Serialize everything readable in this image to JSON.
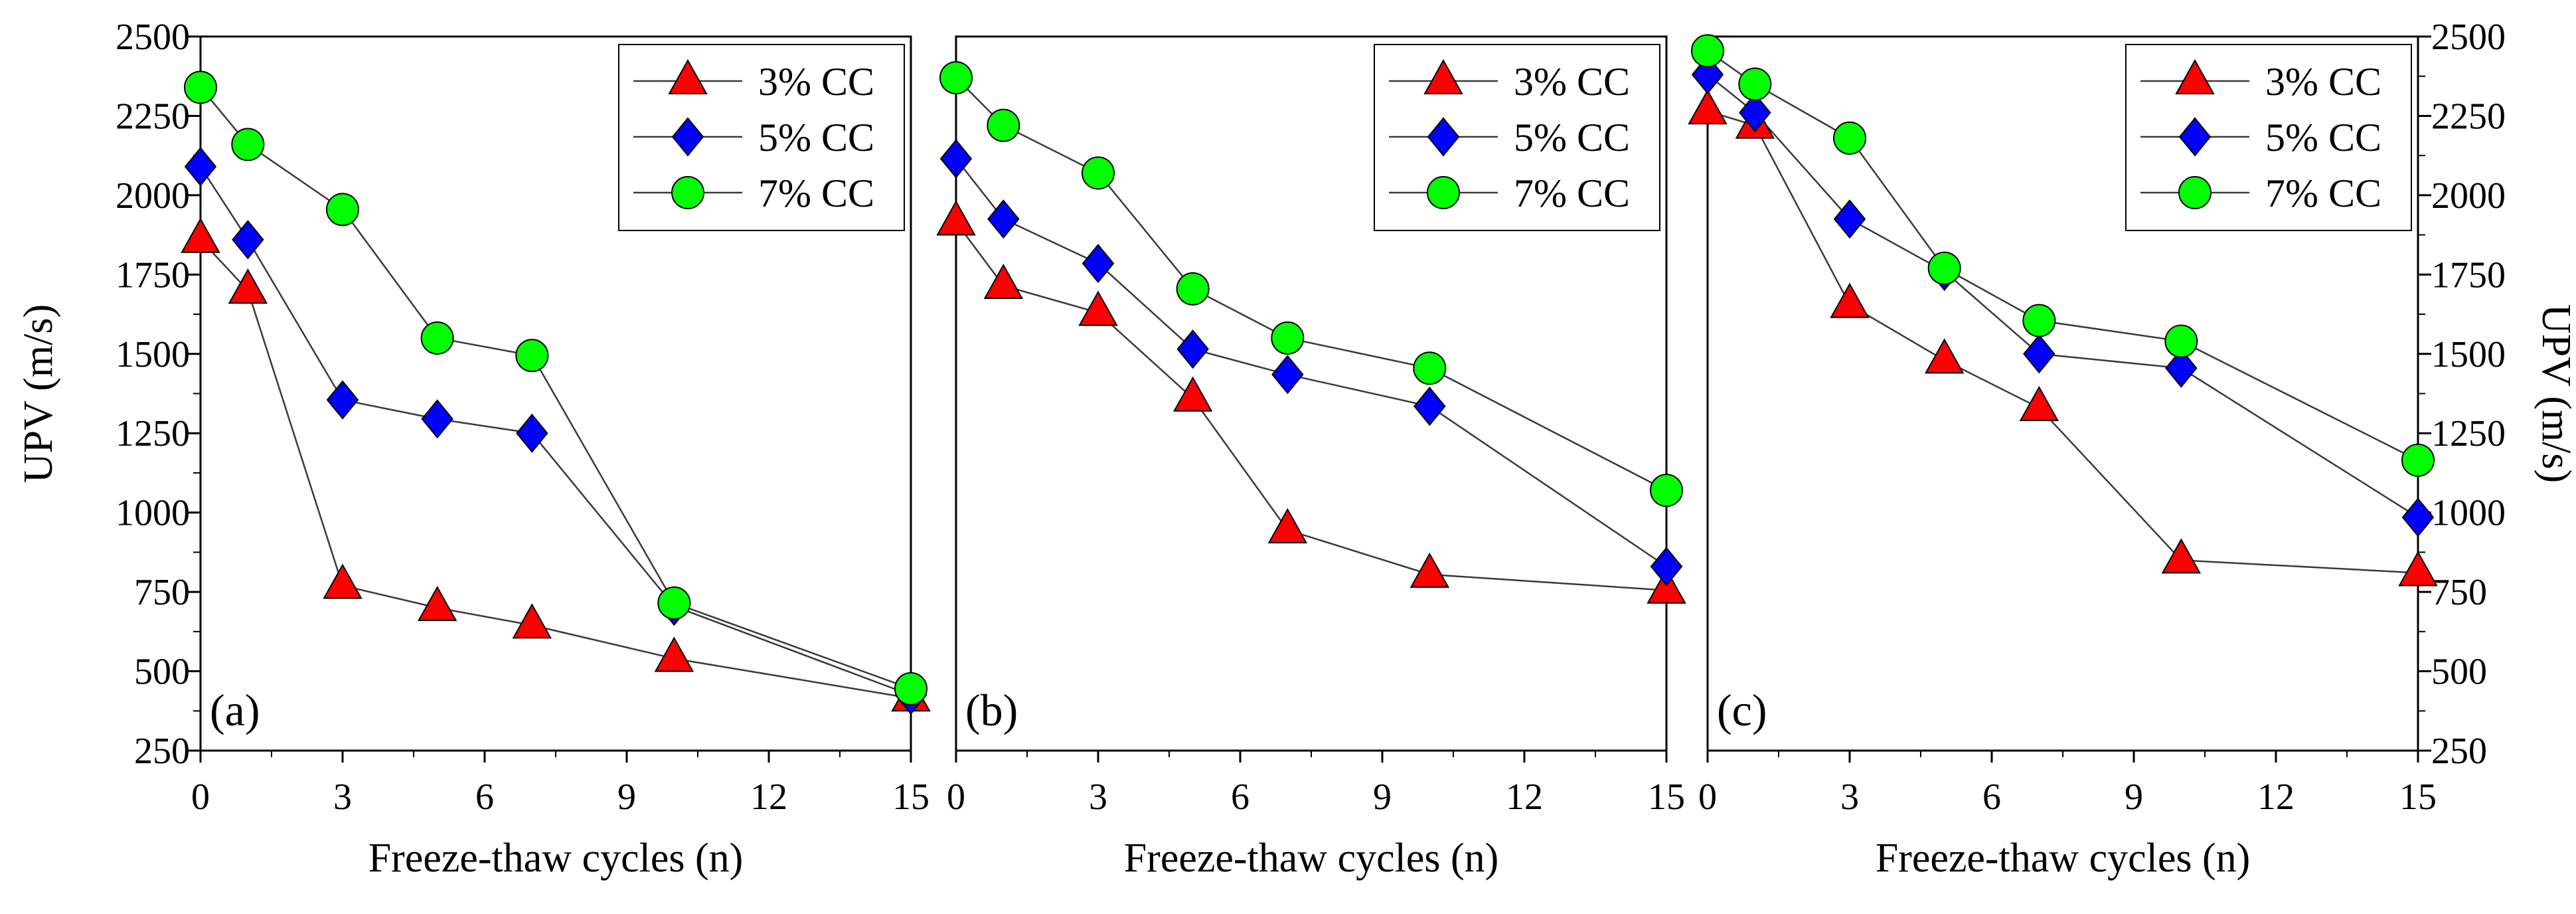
{
  "chart_data": {
    "type": "line",
    "ylabel": "UPV (m/s)",
    "xlabel": "Freeze-thaw cycles (n)",
    "ylim": [
      250,
      2500
    ],
    "xlim": [
      0,
      15
    ],
    "yticks": [
      250,
      500,
      750,
      1000,
      1250,
      1500,
      1750,
      2000,
      2250,
      2500
    ],
    "xticks": [
      0,
      3,
      6,
      9,
      12,
      15
    ],
    "legend_position": "top-right",
    "panels": [
      {
        "label": "(a)",
        "x": [
          0,
          1,
          3,
          5,
          7,
          10,
          15
        ],
        "series": [
          {
            "name": "3% CC",
            "marker": "triangle",
            "color": "#ff0000",
            "values": [
              1860,
              1700,
              770,
              700,
              645,
              540,
              415
            ]
          },
          {
            "name": "5% CC",
            "marker": "diamond",
            "color": "#0000ff",
            "values": [
              2090,
              1860,
              1355,
              1295,
              1250,
              705,
              425
            ]
          },
          {
            "name": "7% CC",
            "marker": "circle",
            "color": "#00ff00",
            "values": [
              2340,
              2160,
              1955,
              1550,
              1495,
              715,
              445
            ]
          }
        ]
      },
      {
        "label": "(b)",
        "x": [
          0,
          1,
          3,
          5,
          7,
          10,
          15
        ],
        "series": [
          {
            "name": "3% CC",
            "marker": "triangle",
            "color": "#ff0000",
            "values": [
              1915,
              1715,
              1630,
              1360,
              945,
              805,
              755
            ]
          },
          {
            "name": "5% CC",
            "marker": "diamond",
            "color": "#0000ff",
            "values": [
              2115,
              1925,
              1785,
              1515,
              1435,
              1335,
              830
            ]
          },
          {
            "name": "7% CC",
            "marker": "circle",
            "color": "#00ff00",
            "values": [
              2370,
              2220,
              2070,
              1705,
              1550,
              1455,
              1070
            ]
          }
        ]
      },
      {
        "label": "(c)",
        "x": [
          0,
          1,
          3,
          5,
          7,
          10,
          15
        ],
        "series": [
          {
            "name": "3% CC",
            "marker": "triangle",
            "color": "#ff0000",
            "values": [
              2265,
              2220,
              1655,
              1480,
              1330,
              850,
              810
            ]
          },
          {
            "name": "5% CC",
            "marker": "diamond",
            "color": "#0000ff",
            "values": [
              2380,
              2260,
              1925,
              1760,
              1500,
              1455,
              985
            ]
          },
          {
            "name": "7% CC",
            "marker": "circle",
            "color": "#00ff00",
            "values": [
              2455,
              2350,
              2180,
              1770,
              1605,
              1540,
              1165
            ]
          }
        ]
      }
    ]
  }
}
